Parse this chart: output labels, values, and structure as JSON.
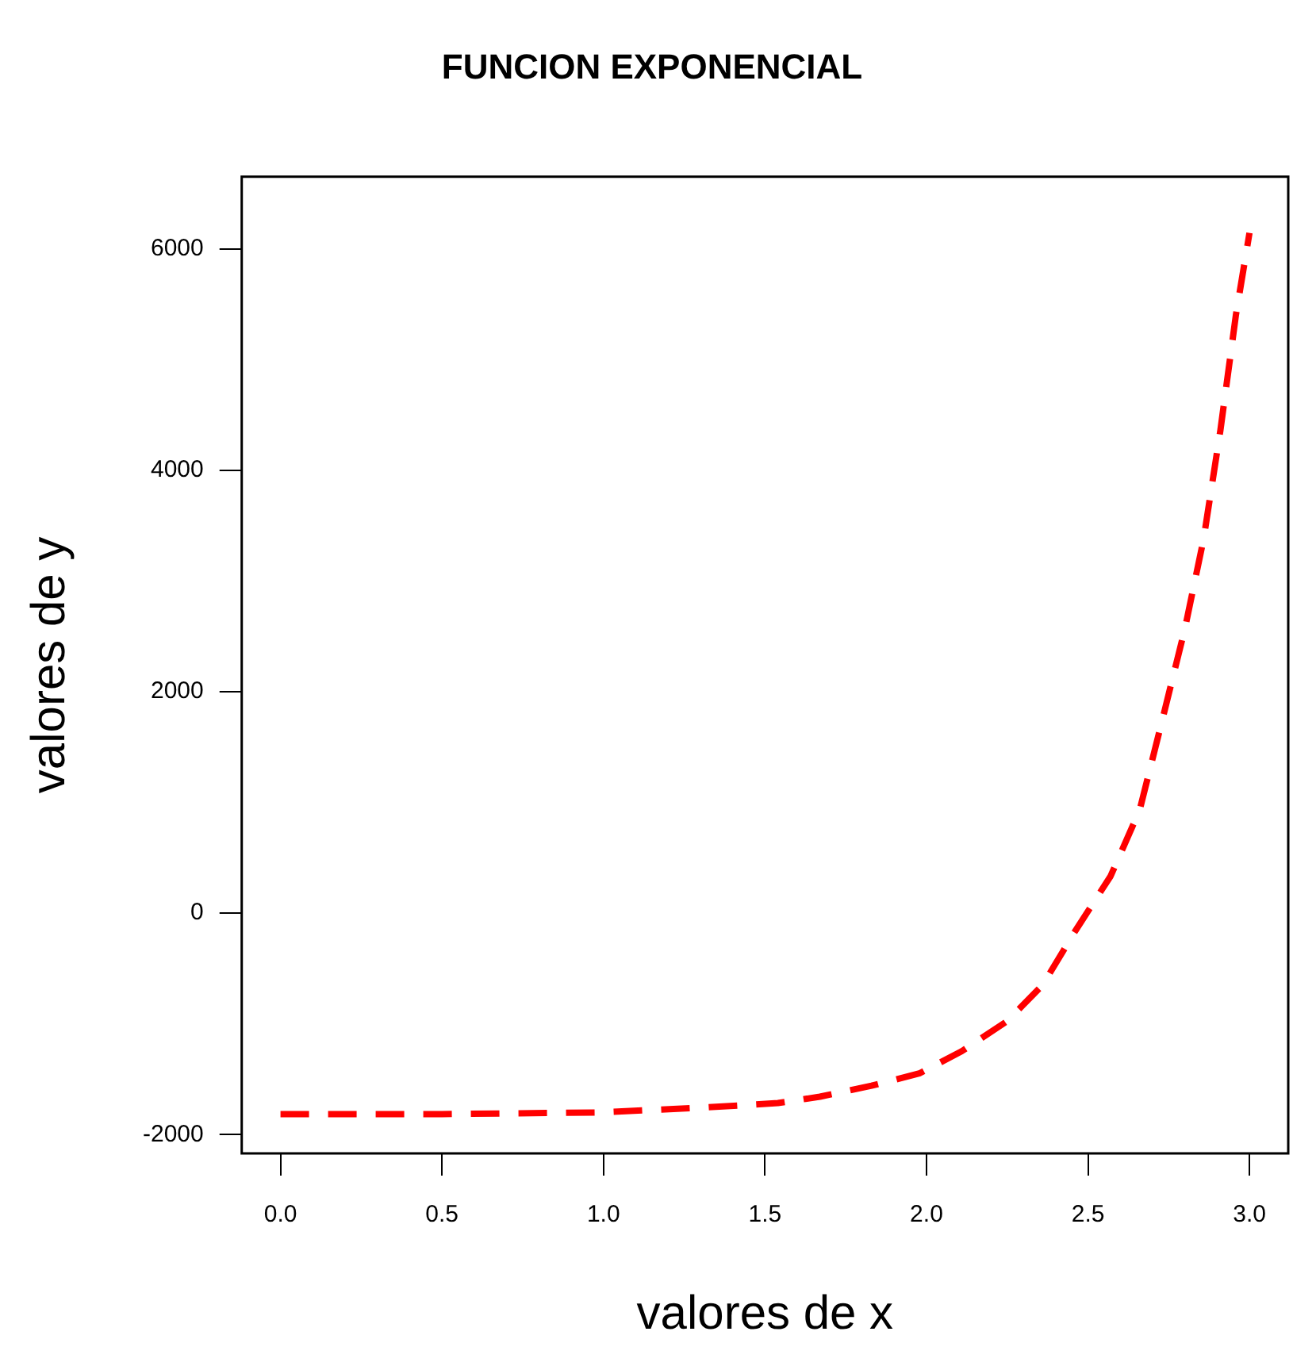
{
  "chart_data": {
    "type": "line",
    "title": "FUNCION EXPONENCIAL",
    "xlabel": "valores de x",
    "ylabel": "valores de y",
    "x": [
      0,
      0.5,
      0.98,
      1.3,
      1.54,
      1.67,
      1.83,
      1.98,
      2.11,
      2.25,
      2.36,
      2.46,
      2.57,
      2.66,
      2.73,
      2.8,
      2.858,
      2.91,
      2.958,
      3
    ],
    "series": [
      {
        "color": "#ff0000",
        "values": [
          -1815,
          -1815,
          -1800,
          -1758,
          -1715,
          -1658,
          -1559,
          -1445,
          -1246,
          -975,
          -648,
          -164,
          334,
          931,
          1743,
          2568,
          3379,
          4361,
          5402,
          6142
        ]
      }
    ],
    "xlim": [
      -0.12,
      3.12
    ],
    "ylim": [
      -2170,
      6650
    ],
    "xticks": [
      {
        "value": 0,
        "label": "0.0"
      },
      {
        "value": 0.5,
        "label": "0.5"
      },
      {
        "value": 1,
        "label": "1.0"
      },
      {
        "value": 1.5,
        "label": "1.5"
      },
      {
        "value": 2,
        "label": "2.0"
      },
      {
        "value": 2.5,
        "label": "2.5"
      },
      {
        "value": 3,
        "label": "3.0"
      }
    ],
    "yticks": [
      -2000,
      0,
      2000,
      4000,
      6000
    ],
    "grid": false,
    "legend": false,
    "marker": "none",
    "line_style": "dashed"
  }
}
